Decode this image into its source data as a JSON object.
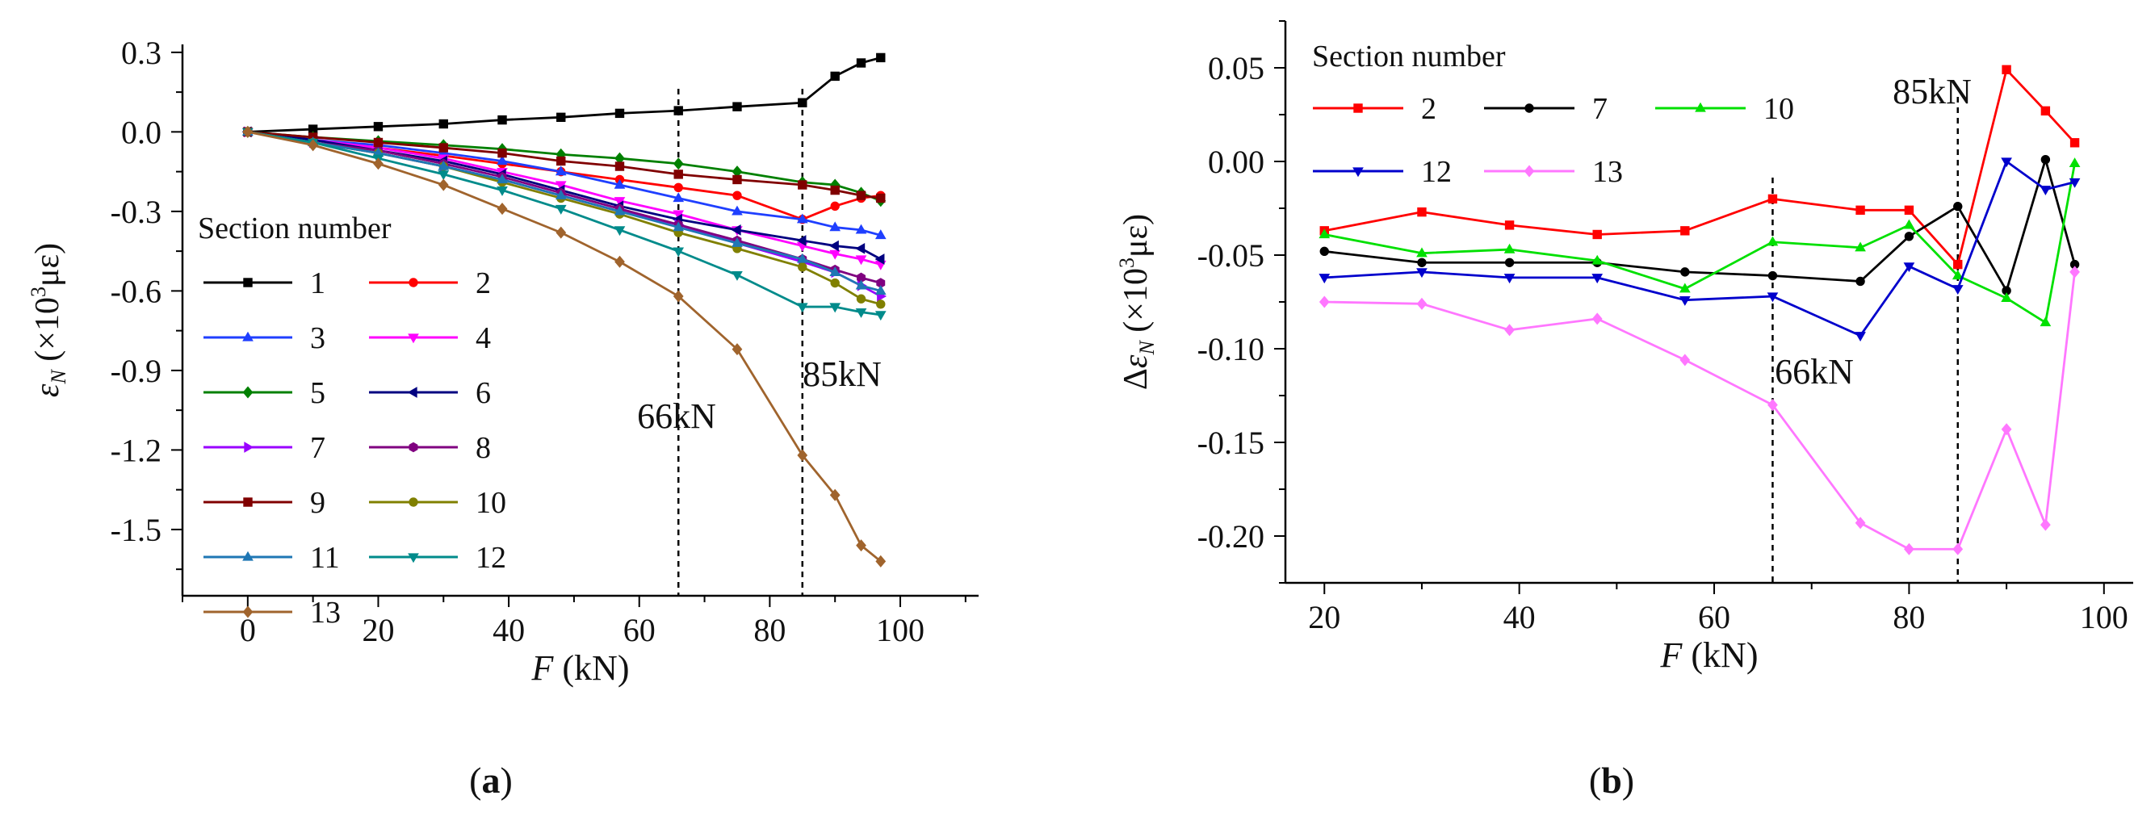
{
  "chart_data": [
    {
      "type": "line",
      "panel_label": "a",
      "xlabel_var": "F",
      "xlabel_unit": "(kN)",
      "ylabel_var": "ε",
      "ylabel_sub": "N",
      "ylabel_unit_open": "(×10",
      "ylabel_unit_exp": "3",
      "ylabel_unit_close": "με)",
      "xlim": [
        -10,
        112
      ],
      "ylim": [
        -1.75,
        0.33
      ],
      "x_ticks": [
        0,
        20,
        40,
        60,
        80,
        100
      ],
      "y_ticks": [
        0.3,
        0.0,
        -0.3,
        -0.6,
        -0.9,
        -1.2,
        -1.5
      ],
      "y_tick_labels": [
        "0.3",
        "0.0",
        "-0.3",
        "-0.6",
        "-0.9",
        "-1.2",
        "-1.5"
      ],
      "legend_title": "Section number",
      "annotations": [
        {
          "text": "66kN",
          "x": 66
        },
        {
          "text": "85kN",
          "x": 85
        }
      ],
      "x": [
        0,
        10,
        20,
        30,
        39,
        48,
        57,
        66,
        75,
        85,
        90,
        94,
        97
      ],
      "series": [
        {
          "name": "1",
          "color": "#000000",
          "marker": "square",
          "values": [
            0,
            0.01,
            0.02,
            0.03,
            0.045,
            0.055,
            0.07,
            0.08,
            0.095,
            0.11,
            0.21,
            0.26,
            0.28
          ]
        },
        {
          "name": "2",
          "color": "#ff0000",
          "marker": "circle",
          "values": [
            0,
            -0.03,
            -0.06,
            -0.09,
            -0.12,
            -0.15,
            -0.18,
            -0.21,
            -0.24,
            -0.33,
            -0.28,
            -0.25,
            -0.24
          ]
        },
        {
          "name": "3",
          "color": "#1f3fff",
          "marker": "triangle",
          "values": [
            0,
            -0.03,
            -0.05,
            -0.08,
            -0.11,
            -0.15,
            -0.2,
            -0.25,
            -0.3,
            -0.33,
            -0.36,
            -0.37,
            -0.39
          ]
        },
        {
          "name": "4",
          "color": "#ff00ff",
          "marker": "tri-down",
          "values": [
            0,
            -0.03,
            -0.06,
            -0.1,
            -0.15,
            -0.2,
            -0.26,
            -0.31,
            -0.37,
            -0.43,
            -0.46,
            -0.48,
            -0.5
          ]
        },
        {
          "name": "5",
          "color": "#008000",
          "marker": "diamond",
          "values": [
            0,
            -0.02,
            -0.035,
            -0.05,
            -0.065,
            -0.085,
            -0.1,
            -0.12,
            -0.15,
            -0.19,
            -0.2,
            -0.23,
            -0.26
          ]
        },
        {
          "name": "6",
          "color": "#000080",
          "marker": "tri-left",
          "values": [
            0,
            -0.03,
            -0.07,
            -0.11,
            -0.16,
            -0.22,
            -0.28,
            -0.33,
            -0.37,
            -0.41,
            -0.43,
            -0.44,
            -0.48
          ]
        },
        {
          "name": "7",
          "color": "#9900ff",
          "marker": "tri-right",
          "values": [
            0,
            -0.04,
            -0.08,
            -0.13,
            -0.18,
            -0.24,
            -0.3,
            -0.35,
            -0.42,
            -0.49,
            -0.53,
            -0.58,
            -0.62
          ]
        },
        {
          "name": "8",
          "color": "#800080",
          "marker": "hexagon",
          "values": [
            0,
            -0.04,
            -0.07,
            -0.12,
            -0.17,
            -0.23,
            -0.29,
            -0.35,
            -0.41,
            -0.48,
            -0.52,
            -0.55,
            -0.57
          ]
        },
        {
          "name": "9",
          "color": "#800000",
          "marker": "square",
          "values": [
            0,
            -0.02,
            -0.04,
            -0.06,
            -0.08,
            -0.11,
            -0.13,
            -0.16,
            -0.18,
            -0.2,
            -0.22,
            -0.24,
            -0.25
          ]
        },
        {
          "name": "10",
          "color": "#808000",
          "marker": "circle",
          "values": [
            0,
            -0.04,
            -0.08,
            -0.13,
            -0.19,
            -0.25,
            -0.31,
            -0.38,
            -0.44,
            -0.51,
            -0.57,
            -0.63,
            -0.65
          ]
        },
        {
          "name": "11",
          "color": "#1f77b4",
          "marker": "triangle",
          "values": [
            0,
            -0.04,
            -0.08,
            -0.13,
            -0.18,
            -0.24,
            -0.3,
            -0.36,
            -0.42,
            -0.48,
            -0.53,
            -0.58,
            -0.6
          ]
        },
        {
          "name": "12",
          "color": "#008b8b",
          "marker": "tri-down",
          "values": [
            0,
            -0.04,
            -0.1,
            -0.16,
            -0.22,
            -0.29,
            -0.37,
            -0.45,
            -0.54,
            -0.66,
            -0.66,
            -0.68,
            -0.69
          ]
        },
        {
          "name": "13",
          "color": "#a0642d",
          "marker": "diamond",
          "values": [
            0,
            -0.05,
            -0.12,
            -0.2,
            -0.29,
            -0.38,
            -0.49,
            -0.62,
            -0.82,
            -1.22,
            -1.37,
            -1.56,
            -1.62
          ]
        }
      ]
    },
    {
      "type": "line",
      "panel_label": "b",
      "xlabel_var": "F",
      "xlabel_unit": "(kN)",
      "ylabel_prefix": "Δ",
      "ylabel_var": "ε",
      "ylabel_sub": "N",
      "ylabel_unit_open": "(×10",
      "ylabel_unit_exp": "3",
      "ylabel_unit_close": "με)",
      "xlim": [
        16,
        103
      ],
      "ylim": [
        -0.225,
        0.075
      ],
      "x_ticks": [
        20,
        40,
        60,
        80,
        100
      ],
      "y_ticks": [
        0.05,
        0.0,
        -0.05,
        -0.1,
        -0.15,
        -0.2
      ],
      "y_tick_labels": [
        "0.05",
        "0.00",
        "-0.05",
        "-0.10",
        "-0.15",
        "-0.20"
      ],
      "legend_title": "Section number",
      "annotations": [
        {
          "text": "66kN",
          "x": 66
        },
        {
          "text": "85kN",
          "x": 85
        }
      ],
      "x": [
        20,
        30,
        39,
        48,
        57,
        66,
        75,
        80,
        85,
        90,
        94,
        97
      ],
      "series": [
        {
          "name": "2",
          "color": "#ff0000",
          "marker": "square",
          "values": [
            -0.037,
            -0.027,
            -0.034,
            -0.039,
            -0.037,
            -0.02,
            -0.026,
            -0.026,
            -0.055,
            0.049,
            0.027,
            0.01
          ]
        },
        {
          "name": "7",
          "color": "#000000",
          "marker": "circle",
          "values": [
            -0.048,
            -0.054,
            -0.054,
            -0.054,
            -0.059,
            -0.061,
            -0.064,
            -0.04,
            -0.024,
            -0.069,
            0.001,
            -0.055
          ]
        },
        {
          "name": "10",
          "color": "#00e000",
          "marker": "triangle",
          "values": [
            -0.039,
            -0.049,
            -0.047,
            -0.053,
            -0.068,
            -0.043,
            -0.046,
            -0.034,
            -0.061,
            -0.073,
            -0.086,
            -0.001
          ]
        },
        {
          "name": "12",
          "color": "#0000cc",
          "marker": "tri-down",
          "values": [
            -0.062,
            -0.059,
            -0.062,
            -0.062,
            -0.074,
            -0.072,
            -0.093,
            -0.056,
            -0.068,
            0.0,
            -0.015,
            -0.011
          ]
        },
        {
          "name": "13",
          "color": "#ff77ff",
          "marker": "diamond",
          "values": [
            -0.075,
            -0.076,
            -0.09,
            -0.084,
            -0.106,
            -0.13,
            -0.193,
            -0.207,
            -0.207,
            -0.143,
            -0.194,
            -0.059
          ]
        }
      ]
    }
  ]
}
